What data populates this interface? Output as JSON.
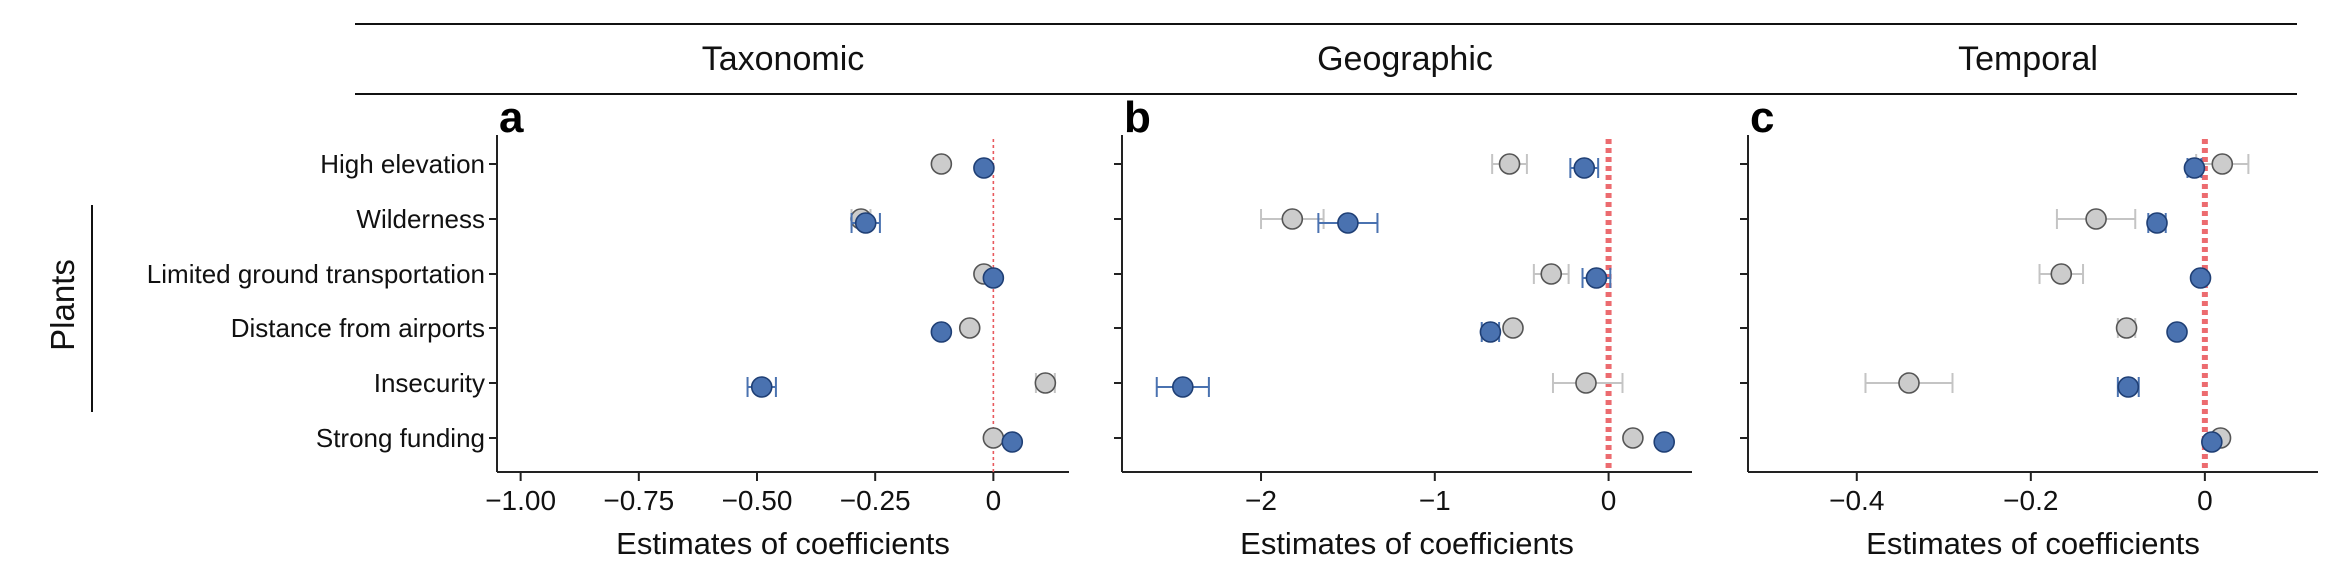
{
  "headers": [
    "Taxonomic",
    "Geographic",
    "Temporal"
  ],
  "group_label": "Plants",
  "chart_data": [
    {
      "type": "scatter",
      "panel": "a",
      "header": "Taxonomic",
      "categories": [
        "High elevation",
        "Wilderness",
        "Limited ground transportation",
        "Distance from airports",
        "Insecurity",
        "Strong funding"
      ],
      "xlabel": "Estimates of coefficients",
      "xlim": [
        -1.05,
        0.16
      ],
      "xticks": [
        -1.0,
        -0.75,
        -0.5,
        -0.25,
        0
      ],
      "xtick_labels": [
        "−1.00",
        "−0.75",
        "−0.50",
        "−0.25",
        "0"
      ],
      "reference_line": {
        "x": 0,
        "style": "thin-dotted"
      },
      "series": [
        {
          "color": "#cccccc",
          "values": [
            -0.11,
            -0.28,
            -0.02,
            -0.05,
            0.11,
            0.0
          ],
          "ci_low": [
            null,
            -0.3,
            null,
            null,
            0.09,
            null
          ],
          "ci_high": [
            null,
            -0.26,
            null,
            null,
            0.13,
            null
          ]
        },
        {
          "color": "#4a72b0",
          "values": [
            -0.02,
            -0.27,
            0.0,
            -0.11,
            -0.49,
            0.04
          ],
          "ci_low": [
            null,
            -0.3,
            null,
            null,
            -0.52,
            null
          ],
          "ci_high": [
            null,
            -0.24,
            null,
            null,
            -0.46,
            null
          ]
        }
      ]
    },
    {
      "type": "scatter",
      "panel": "b",
      "header": "Geographic",
      "categories": [
        "High elevation",
        "Wilderness",
        "Limited ground transportation",
        "Distance from airports",
        "Insecurity",
        "Strong funding"
      ],
      "xlabel": "Estimates of coefficients",
      "xlim": [
        -2.8,
        0.48
      ],
      "xticks": [
        -2,
        -1,
        0
      ],
      "xtick_labels": [
        "−2",
        "−1",
        "0"
      ],
      "reference_line": {
        "x": 0,
        "style": "thick-dotted"
      },
      "series": [
        {
          "color": "#cccccc",
          "values": [
            -0.57,
            -1.82,
            -0.33,
            -0.55,
            -0.13,
            0.14
          ],
          "ci_low": [
            -0.67,
            -2.0,
            -0.43,
            null,
            -0.32,
            null
          ],
          "ci_high": [
            -0.47,
            -1.64,
            -0.23,
            null,
            0.08,
            null
          ]
        },
        {
          "color": "#4a72b0",
          "values": [
            -0.14,
            -1.5,
            -0.07,
            -0.68,
            -2.45,
            0.32
          ],
          "ci_low": [
            -0.22,
            -1.67,
            -0.15,
            -0.73,
            -2.6,
            null
          ],
          "ci_high": [
            -0.06,
            -1.33,
            0.01,
            -0.63,
            -2.3,
            null
          ]
        }
      ]
    },
    {
      "type": "scatter",
      "panel": "c",
      "header": "Temporal",
      "categories": [
        "High elevation",
        "Wilderness",
        "Limited ground transportation",
        "Distance from airports",
        "Insecurity",
        "Strong funding"
      ],
      "xlabel": "Estimates of coefficients",
      "xlim": [
        -0.525,
        0.13
      ],
      "xticks": [
        -0.4,
        -0.2,
        0
      ],
      "xtick_labels": [
        "−0.4",
        "−0.2",
        "0"
      ],
      "reference_line": {
        "x": 0,
        "style": "thick-dotted"
      },
      "series": [
        {
          "color": "#cccccc",
          "values": [
            0.02,
            -0.125,
            -0.165,
            -0.09,
            -0.34,
            0.018
          ],
          "ci_low": [
            -0.01,
            -0.17,
            -0.19,
            -0.1,
            -0.39,
            null
          ],
          "ci_high": [
            0.05,
            -0.08,
            -0.14,
            -0.08,
            -0.29,
            null
          ]
        },
        {
          "color": "#4a72b0",
          "values": [
            -0.012,
            -0.055,
            -0.005,
            -0.032,
            -0.088,
            0.008
          ],
          "ci_low": [
            -0.02,
            -0.065,
            null,
            null,
            -0.1,
            null
          ],
          "ci_high": [
            -0.004,
            -0.045,
            null,
            null,
            -0.076,
            null
          ]
        }
      ]
    }
  ]
}
